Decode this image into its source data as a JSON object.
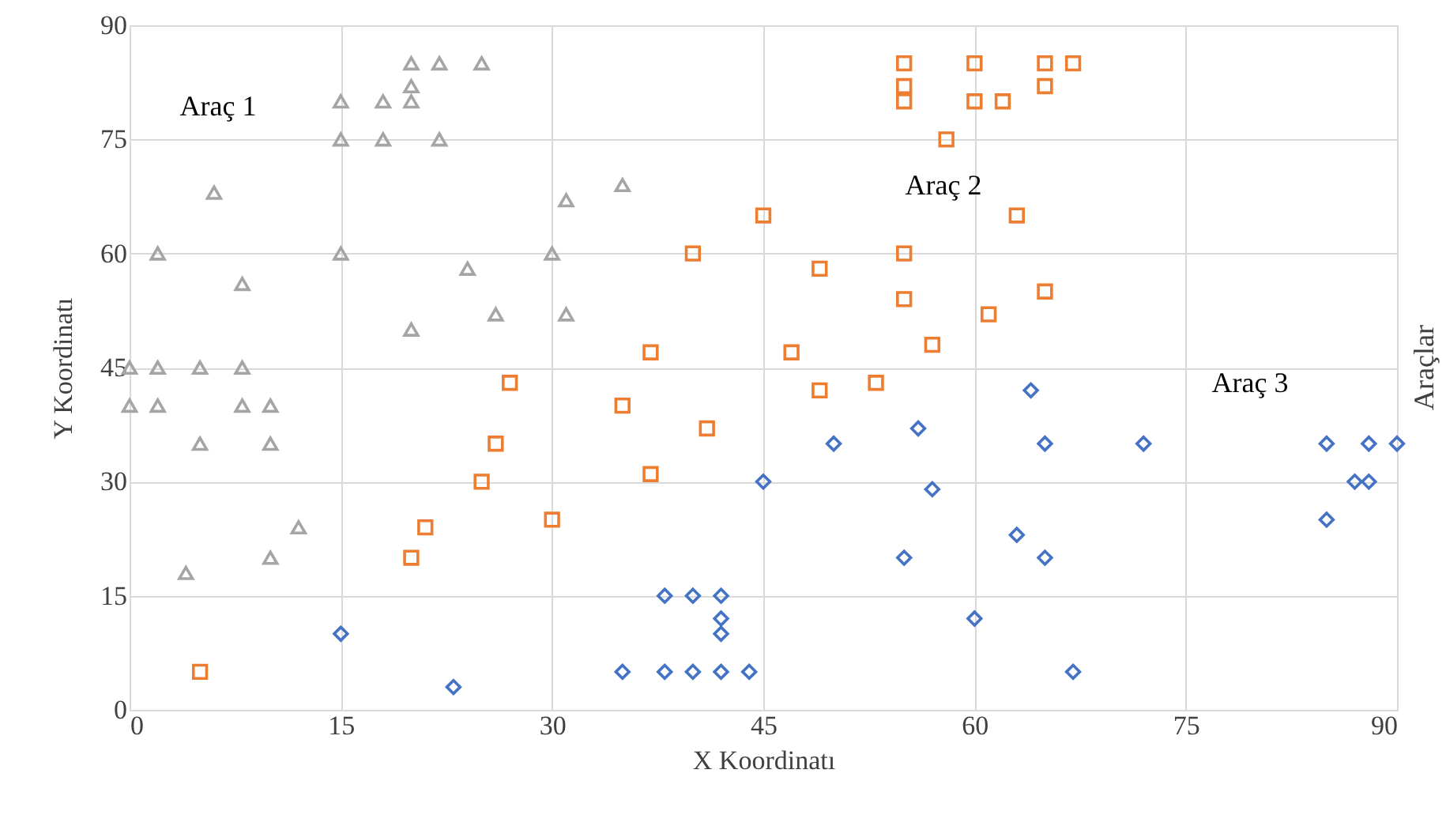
{
  "chart_data": {
    "type": "scatter",
    "xlabel": "X Koordinatı",
    "ylabel": "Y Koordinatı",
    "xlim": [
      0,
      90
    ],
    "ylim": [
      0,
      90
    ],
    "xticks": [
      0,
      15,
      30,
      45,
      60,
      75,
      90
    ],
    "yticks": [
      0,
      15,
      30,
      45,
      60,
      75,
      90
    ],
    "grid": true,
    "series": [
      {
        "name": "Araç 1",
        "color": "#a5a5a5",
        "marker": "triangle",
        "x": [
          0,
          2,
          5,
          8,
          0,
          2,
          8,
          10,
          5,
          10,
          12,
          10,
          4,
          15,
          15,
          18,
          18,
          20,
          20,
          20,
          22,
          22,
          25,
          6,
          2,
          15,
          8,
          20,
          24,
          26,
          30,
          31,
          31,
          35
        ],
        "values": [
          45,
          45,
          45,
          45,
          40,
          40,
          40,
          40,
          35,
          35,
          24,
          20,
          18,
          80,
          75,
          80,
          75,
          85,
          82,
          80,
          85,
          75,
          85,
          68,
          60,
          60,
          56,
          50,
          58,
          52,
          60,
          67,
          52,
          69
        ]
      },
      {
        "name": "Araç 2",
        "color": "#ed7d31",
        "marker": "square",
        "x": [
          5,
          20,
          21,
          25,
          26,
          27,
          30,
          35,
          37,
          37,
          40,
          41,
          45,
          47,
          49,
          49,
          53,
          55,
          55,
          55,
          55,
          55,
          57,
          58,
          60,
          60,
          62,
          63,
          61,
          65,
          65,
          65,
          67
        ],
        "values": [
          5,
          20,
          24,
          30,
          35,
          43,
          25,
          40,
          31,
          47,
          60,
          37,
          65,
          47,
          42,
          58,
          43,
          85,
          82,
          80,
          60,
          54,
          48,
          75,
          85,
          80,
          80,
          65,
          52,
          85,
          82,
          55,
          85
        ]
      },
      {
        "name": "Araç 3",
        "color": "#4472c4",
        "marker": "diamond",
        "x": [
          15,
          23,
          35,
          38,
          40,
          42,
          44,
          38,
          40,
          42,
          42,
          42,
          45,
          50,
          56,
          57,
          55,
          60,
          63,
          64,
          65,
          65,
          67,
          72,
          85,
          85,
          87,
          88,
          88,
          90
        ],
        "values": [
          10,
          3,
          5,
          5,
          5,
          5,
          5,
          15,
          15,
          15,
          12,
          10,
          30,
          35,
          37,
          29,
          20,
          12,
          23,
          42,
          35,
          20,
          5,
          35,
          35,
          25,
          30,
          30,
          35,
          35
        ]
      }
    ],
    "annotations": [
      "Araçlar"
    ]
  }
}
